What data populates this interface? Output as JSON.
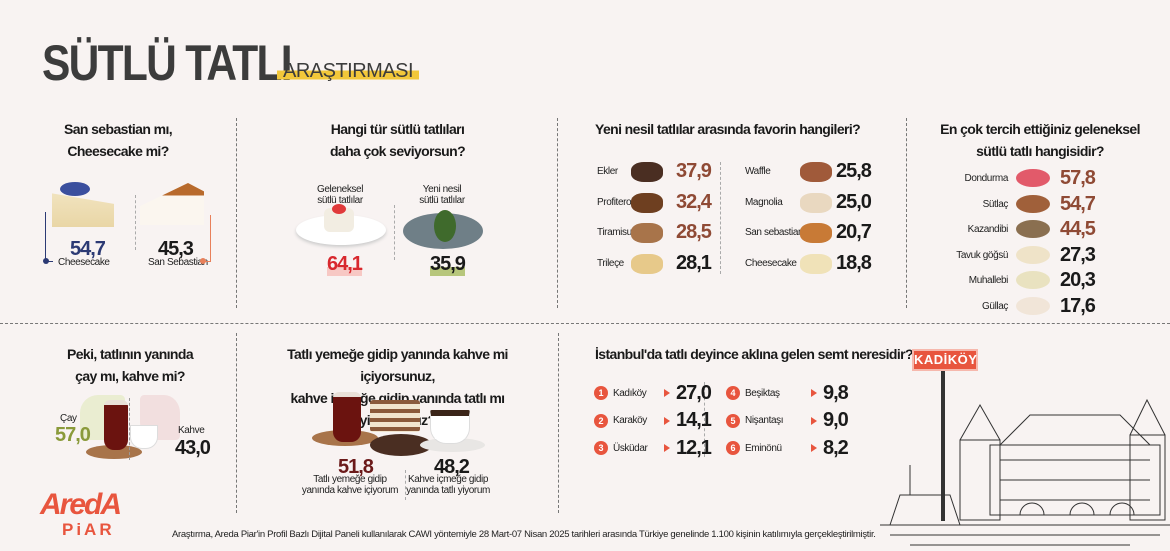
{
  "header": {
    "title": "SÜTLÜ TATLI",
    "subtitle": "ARAŞTIRMASI"
  },
  "colors": {
    "background": "#f8f3f2",
    "accent_red": "#e8553e",
    "brown": "#8f4a35",
    "navy": "#2c3a74",
    "highlight": "#f2c73a"
  },
  "q1": {
    "title_line1": "San sebastian mı,",
    "title_line2": "Cheesecake mi?",
    "items": [
      {
        "label": "Cheesecake",
        "value": "54,7",
        "color": "#2c3a74"
      },
      {
        "label": "San Sebastian",
        "value": "45,3",
        "color": "#e8805a"
      }
    ]
  },
  "q2": {
    "title_line1": "Hangi tür sütlü tatlıları",
    "title_line2": "daha çok seviyorsun?",
    "items": [
      {
        "label_line1": "Geleneksel",
        "label_line2": "sütlü tatlılar",
        "value": "64,1",
        "color": "#d8282e"
      },
      {
        "label_line1": "Yeni nesil",
        "label_line2": "sütlü tatlılar",
        "value": "35,9",
        "color": "#1a1a1a"
      }
    ]
  },
  "q3": {
    "title": "Yeni nesil tatlılar arasında favorin hangileri?",
    "left": [
      {
        "label": "Ekler",
        "value": "37,9"
      },
      {
        "label": "Profiterol",
        "value": "32,4"
      },
      {
        "label": "Tiramisu",
        "value": "28,5"
      },
      {
        "label": "Trileçe",
        "value": "28,1"
      }
    ],
    "right": [
      {
        "label": "Waffle",
        "value": "25,8"
      },
      {
        "label": "Magnolia",
        "value": "25,0"
      },
      {
        "label": "San sebastian",
        "value": "20,7"
      },
      {
        "label": "Cheesecake",
        "value": "18,8"
      }
    ]
  },
  "q4": {
    "title_line1": "En çok tercih ettiğiniz geleneksel",
    "title_line2": "sütlü tatlı hangisidir?",
    "items": [
      {
        "label": "Dondurma",
        "value": "57,8"
      },
      {
        "label": "Sütlaç",
        "value": "54,7"
      },
      {
        "label": "Kazandibi",
        "value": "44,5"
      },
      {
        "label": "Tavuk göğsü",
        "value": "27,3"
      },
      {
        "label": "Muhallebi",
        "value": "20,3"
      },
      {
        "label": "Güllaç",
        "value": "17,6"
      }
    ]
  },
  "q5": {
    "title_line1": "Peki, tatlının yanında",
    "title_line2": "çay mı, kahve mi?",
    "items": [
      {
        "label": "Çay",
        "value": "57,0",
        "color": "#8a9a3a"
      },
      {
        "label": "Kahve",
        "value": "43,0",
        "color": "#1a1a1a"
      }
    ]
  },
  "q6": {
    "title_line1": "Tatlı yemeğe gidip yanında kahve mi içiyorsunuz,",
    "title_line2": "kahve içmeğe gidip yanında tatlı mı yiyorsunuz?",
    "items": [
      {
        "value": "51,8",
        "label_line1": "Tatlı yemeğe gidip",
        "label_line2": "yanında kahve içiyorum",
        "color": "#6b1a1a"
      },
      {
        "value": "48,2",
        "label_line1": "Kahve içmeğe gidip",
        "label_line2": "yanında tatlı yiyorum",
        "color": "#1a1a1a"
      }
    ]
  },
  "q7": {
    "title": "İstanbul'da tatlı deyince aklına gelen semt neresidir?",
    "items": [
      {
        "rank": "1",
        "label": "Kadıköy",
        "value": "27,0"
      },
      {
        "rank": "2",
        "label": "Karaköy",
        "value": "14,1"
      },
      {
        "rank": "3",
        "label": "Üsküdar",
        "value": "12,1"
      },
      {
        "rank": "4",
        "label": "Beşiktaş",
        "value": "9,8"
      },
      {
        "rank": "5",
        "label": "Nişantaşı",
        "value": "9,0"
      },
      {
        "rank": "6",
        "label": "Eminönü",
        "value": "8,2"
      }
    ],
    "sign": "KADİKÖY"
  },
  "logo": {
    "line1": "AredA",
    "line2": "PiAR"
  },
  "footer": "Araştırma, Areda Piar'in Profil Bazlı Dijital Paneli kullanılarak CAWI yöntemiyle 28 Mart-07 Nisan 2025 tarihleri arasında Türkiye genelinde 1.100 kişinin katılımıyla gerçekleştirilmiştir."
}
